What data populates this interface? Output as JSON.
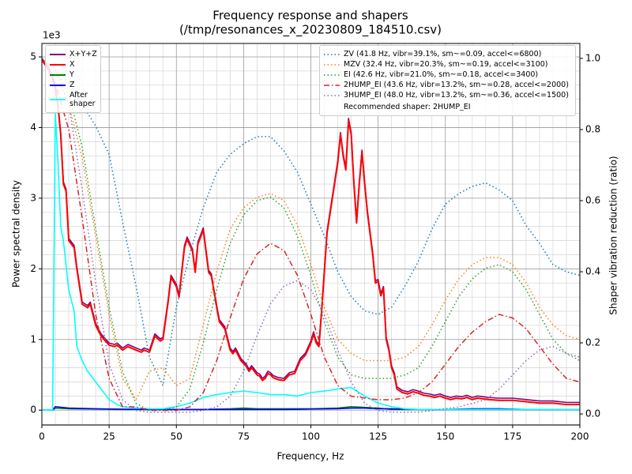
{
  "chart_data": {
    "type": "line",
    "title": "Frequency response and shapers",
    "subtitle": "(/tmp/resonances_x_20230809_184510.csv)",
    "xlabel": "Frequency, Hz",
    "ylabel": "Power spectral density",
    "y2label": "Shaper vibration reduction (ratio)",
    "y_offset_label": "1e3",
    "recommended": "Recommended shaper: 2HUMP_EI",
    "grid": true,
    "legend": "upper left",
    "legend2": "upper right",
    "xlim": [
      0,
      200
    ],
    "ylim": [
      -0.21,
      5.19
    ],
    "y2lim": [
      -0.031,
      1.042
    ],
    "xticks": [
      0,
      25,
      50,
      75,
      100,
      125,
      150,
      175,
      200
    ],
    "yticks": [
      0,
      1,
      2,
      3,
      4,
      5
    ],
    "y2ticks": [
      {
        "value": 0,
        "label": "0.0"
      },
      0.2,
      0.4,
      0.6,
      0.8,
      {
        "value": 1,
        "label": "1.0"
      }
    ],
    "xminorticks": [
      5,
      10,
      15,
      20,
      30,
      35,
      40,
      45,
      55,
      60,
      65,
      70,
      80,
      85,
      90,
      95,
      105,
      110,
      115,
      120,
      130,
      135,
      140,
      145,
      155,
      160,
      165,
      170,
      180,
      185,
      190,
      195
    ],
    "yminorticks": [
      -0.2,
      0.2,
      0.4,
      0.6,
      0.8,
      1.2,
      1.4,
      1.6,
      1.8,
      2.2,
      2.4,
      2.6,
      2.8,
      3.2,
      3.4,
      3.6,
      3.8,
      4.2,
      4.4,
      4.6,
      4.8
    ],
    "x": [
      0,
      2,
      4,
      5,
      6,
      7,
      8,
      9,
      10,
      12,
      13,
      15,
      17,
      18,
      20,
      22,
      25,
      27,
      28,
      30,
      32,
      35,
      37,
      38,
      40,
      42,
      44,
      45,
      47,
      48,
      50,
      51,
      53,
      54,
      56,
      57,
      58,
      60,
      62,
      63,
      65,
      66,
      68,
      70,
      71,
      72,
      74,
      76,
      77,
      78,
      80,
      81,
      82,
      83,
      84,
      85,
      86,
      88,
      90,
      92,
      94,
      96,
      98,
      100,
      101,
      102,
      103,
      104,
      106,
      108,
      110,
      111,
      112,
      113,
      114,
      115,
      116,
      117,
      118,
      119,
      120,
      121,
      123,
      124,
      125,
      126,
      127,
      128,
      129,
      130,
      131,
      132,
      134,
      136,
      138,
      140,
      142,
      144,
      146,
      148,
      150,
      152,
      154,
      156,
      158,
      160,
      162,
      164,
      166,
      170,
      175,
      180,
      185,
      190,
      195,
      200
    ],
    "series": [
      {
        "name": "X+Y+Z",
        "color": "#800080",
        "linestyle": "solid",
        "values": [
          4.98,
          4.88,
          4.73,
          4.58,
          4.33,
          3.93,
          3.23,
          3.13,
          2.43,
          2.33,
          2.03,
          1.53,
          1.48,
          1.53,
          1.23,
          1.08,
          0.95,
          0.93,
          0.95,
          0.88,
          0.93,
          0.88,
          0.85,
          0.88,
          0.85,
          1.08,
          1.01,
          1.03,
          1.58,
          1.91,
          1.78,
          1.63,
          2.33,
          2.45,
          2.28,
          1.98,
          2.38,
          2.58,
          1.98,
          1.93,
          1.48,
          1.28,
          1.18,
          0.88,
          0.83,
          0.88,
          0.73,
          0.65,
          0.58,
          0.63,
          0.53,
          0.51,
          0.45,
          0.48,
          0.55,
          0.53,
          0.49,
          0.46,
          0.45,
          0.53,
          0.55,
          0.73,
          0.81,
          0.98,
          1.11,
          0.98,
          0.93,
          1.43,
          2.53,
          3.03,
          3.53,
          3.93,
          3.63,
          3.43,
          4.13,
          3.93,
          3.23,
          2.68,
          3.23,
          3.68,
          3.23,
          2.83,
          2.23,
          1.83,
          1.85,
          1.65,
          1.75,
          1.03,
          0.88,
          0.63,
          0.53,
          0.33,
          0.28,
          0.26,
          0.29,
          0.27,
          0.24,
          0.23,
          0.21,
          0.23,
          0.2,
          0.18,
          0.2,
          0.19,
          0.21,
          0.18,
          0.2,
          0.19,
          0.18,
          0.17,
          0.17,
          0.15,
          0.13,
          0.13,
          0.11,
          0.11
        ]
      },
      {
        "name": "X",
        "color": "#ff0000",
        "linestyle": "solid",
        "values": [
          4.95,
          4.85,
          4.7,
          4.55,
          4.3,
          3.9,
          3.2,
          3.1,
          2.4,
          2.3,
          2.0,
          1.5,
          1.45,
          1.5,
          1.2,
          1.05,
          0.92,
          0.9,
          0.92,
          0.85,
          0.9,
          0.85,
          0.82,
          0.85,
          0.82,
          1.05,
          0.98,
          1.0,
          1.55,
          1.88,
          1.75,
          1.6,
          2.3,
          2.42,
          2.25,
          1.95,
          2.35,
          2.55,
          1.95,
          1.9,
          1.45,
          1.25,
          1.15,
          0.85,
          0.8,
          0.85,
          0.7,
          0.62,
          0.55,
          0.6,
          0.5,
          0.48,
          0.42,
          0.45,
          0.52,
          0.5,
          0.46,
          0.43,
          0.42,
          0.5,
          0.52,
          0.7,
          0.78,
          0.95,
          1.08,
          0.95,
          0.9,
          1.4,
          2.5,
          3.0,
          3.5,
          3.9,
          3.6,
          3.4,
          4.1,
          3.9,
          3.2,
          2.65,
          3.2,
          3.65,
          3.2,
          2.8,
          2.2,
          1.8,
          1.82,
          1.62,
          1.72,
          1.0,
          0.85,
          0.6,
          0.5,
          0.3,
          0.25,
          0.23,
          0.26,
          0.24,
          0.21,
          0.2,
          0.18,
          0.2,
          0.17,
          0.15,
          0.17,
          0.16,
          0.18,
          0.15,
          0.17,
          0.16,
          0.15,
          0.14,
          0.14,
          0.12,
          0.1,
          0.1,
          0.08,
          0.08
        ]
      },
      {
        "name": "Y",
        "color": "#008000",
        "linestyle": "solid",
        "x": [
          0,
          4,
          5,
          10,
          20,
          30,
          40,
          50,
          60,
          70,
          75,
          80,
          90,
          100,
          110,
          115,
          120,
          125,
          130,
          140,
          150,
          160,
          170,
          180,
          190,
          200
        ],
        "values": [
          0,
          0,
          0.03,
          0.02,
          0.015,
          0.01,
          0.01,
          0.01,
          0.01,
          0.02,
          0.03,
          0.02,
          0.02,
          0.02,
          0.03,
          0.05,
          0.04,
          0.03,
          0.01,
          0.01,
          0.01,
          0.01,
          0.01,
          0.01,
          0.01,
          0.01
        ]
      },
      {
        "name": "Z",
        "color": "#0000ff",
        "linestyle": "solid",
        "x": [
          0,
          4,
          5,
          10,
          20,
          30,
          40,
          50,
          60,
          70,
          75,
          80,
          90,
          100,
          110,
          115,
          120,
          125,
          130,
          140,
          150,
          160,
          170,
          180,
          190,
          200
        ],
        "values": [
          0,
          0,
          0.05,
          0.03,
          0.02,
          0.015,
          0.01,
          0.01,
          0.01,
          0.01,
          0.01,
          0.01,
          0.01,
          0.015,
          0.02,
          0.03,
          0.03,
          0.02,
          0.02,
          0.01,
          0.01,
          0.02,
          0.02,
          0.01,
          0.01,
          0.01
        ]
      },
      {
        "name": "After shaper",
        "color": "#00ffff",
        "linestyle": "solid",
        "x": [
          0,
          4,
          5,
          6,
          7,
          8,
          10,
          12,
          13,
          15,
          17,
          20,
          22,
          25,
          28,
          30,
          35,
          40,
          45,
          50,
          55,
          60,
          65,
          70,
          75,
          80,
          85,
          90,
          95,
          100,
          105,
          110,
          115,
          120,
          125,
          130,
          135,
          140,
          150,
          160,
          170,
          180,
          190,
          200
        ],
        "values": [
          0,
          0,
          4.2,
          3.5,
          2.6,
          2.4,
          1.7,
          1.4,
          0.9,
          0.7,
          0.55,
          0.4,
          0.3,
          0.15,
          0.08,
          0.05,
          0.03,
          0.02,
          0.02,
          0.05,
          0.1,
          0.18,
          0.22,
          0.25,
          0.27,
          0.25,
          0.22,
          0.22,
          0.2,
          0.25,
          0.27,
          0.3,
          0.32,
          0.2,
          0.1,
          0.05,
          0.02,
          0.01,
          0.01,
          0.01,
          0.01,
          0.01,
          0.01,
          0.01
        ]
      },
      {
        "name": "ZV (41.8 Hz, vibr=39.1%, sm~=0.09, accel<=6800)",
        "color": "#1f77b4",
        "linestyle": "dotted",
        "axis": "y2",
        "x": [
          0,
          5,
          10,
          15,
          20,
          25,
          30,
          35,
          40,
          45,
          50,
          55,
          60,
          65,
          70,
          75,
          80,
          85,
          90,
          95,
          100,
          105,
          110,
          115,
          120,
          125,
          130,
          135,
          140,
          145,
          150,
          155,
          160,
          165,
          170,
          175,
          180,
          185,
          190,
          195,
          200
        ],
        "values": [
          1.0,
          0.97,
          0.93,
          0.87,
          0.81,
          0.73,
          0.54,
          0.36,
          0.16,
          0.08,
          0.3,
          0.45,
          0.58,
          0.68,
          0.73,
          0.76,
          0.78,
          0.78,
          0.74,
          0.68,
          0.59,
          0.5,
          0.4,
          0.33,
          0.29,
          0.28,
          0.3,
          0.36,
          0.43,
          0.52,
          0.59,
          0.62,
          0.64,
          0.65,
          0.63,
          0.6,
          0.53,
          0.48,
          0.42,
          0.4,
          0.39
        ]
      },
      {
        "name": "MZV (32.4 Hz, vibr=20.3%, sm~=0.19, accel<=3100)",
        "color": "#ff7f0e",
        "linestyle": "dotted",
        "axis": "y2",
        "x": [
          0,
          5,
          10,
          15,
          20,
          25,
          30,
          35,
          40,
          45,
          50,
          55,
          60,
          65,
          70,
          75,
          80,
          85,
          90,
          95,
          100,
          105,
          110,
          115,
          120,
          125,
          130,
          135,
          140,
          145,
          150,
          155,
          160,
          165,
          170,
          175,
          180,
          185,
          190,
          195,
          200
        ],
        "values": [
          1.0,
          0.96,
          0.87,
          0.72,
          0.5,
          0.28,
          0.1,
          0.04,
          0.12,
          0.13,
          0.08,
          0.1,
          0.25,
          0.4,
          0.52,
          0.58,
          0.61,
          0.62,
          0.6,
          0.53,
          0.42,
          0.3,
          0.21,
          0.17,
          0.15,
          0.15,
          0.15,
          0.16,
          0.19,
          0.25,
          0.32,
          0.38,
          0.42,
          0.44,
          0.44,
          0.42,
          0.37,
          0.3,
          0.25,
          0.22,
          0.21
        ]
      },
      {
        "name": "EI (42.6 Hz, vibr=21.0%, sm~=0.18, accel<=3400)",
        "color": "#2ca02c",
        "linestyle": "dotted",
        "axis": "y2",
        "x": [
          0,
          5,
          10,
          15,
          20,
          25,
          30,
          35,
          40,
          45,
          50,
          55,
          60,
          65,
          70,
          75,
          80,
          85,
          90,
          95,
          100,
          105,
          110,
          115,
          120,
          125,
          130,
          135,
          140,
          145,
          150,
          155,
          160,
          165,
          170,
          175,
          180,
          185,
          190,
          195,
          200
        ],
        "values": [
          1.0,
          0.97,
          0.9,
          0.75,
          0.52,
          0.3,
          0.12,
          0.03,
          0.01,
          0.01,
          0.02,
          0.07,
          0.2,
          0.35,
          0.48,
          0.56,
          0.6,
          0.61,
          0.58,
          0.5,
          0.39,
          0.26,
          0.16,
          0.11,
          0.1,
          0.1,
          0.1,
          0.11,
          0.13,
          0.19,
          0.26,
          0.33,
          0.38,
          0.41,
          0.42,
          0.4,
          0.35,
          0.28,
          0.21,
          0.17,
          0.16
        ]
      },
      {
        "name": "2HUMP_EI (43.6 Hz, vibr=13.2%, sm~=0.28, accel<=2000)",
        "color": "#d62728",
        "linestyle": "dashdot",
        "axis": "y2",
        "x": [
          0,
          5,
          10,
          15,
          20,
          25,
          30,
          35,
          40,
          45,
          50,
          55,
          60,
          65,
          70,
          75,
          80,
          85,
          90,
          95,
          100,
          105,
          110,
          115,
          120,
          125,
          130,
          135,
          140,
          145,
          150,
          155,
          160,
          165,
          170,
          175,
          180,
          185,
          190,
          195,
          200
        ],
        "values": [
          1.0,
          0.93,
          0.8,
          0.55,
          0.28,
          0.1,
          0.02,
          0.02,
          0.01,
          0.01,
          0.01,
          0.02,
          0.06,
          0.15,
          0.27,
          0.38,
          0.45,
          0.48,
          0.46,
          0.39,
          0.28,
          0.16,
          0.08,
          0.05,
          0.045,
          0.04,
          0.04,
          0.045,
          0.06,
          0.09,
          0.14,
          0.19,
          0.23,
          0.26,
          0.28,
          0.27,
          0.24,
          0.19,
          0.14,
          0.1,
          0.09
        ]
      },
      {
        "name": "3HUMP_EI (48.0 Hz, vibr=13.2%, sm~=0.36, accel<=1500)",
        "color": "#9467bd",
        "linestyle": "dotted",
        "axis": "y2",
        "x": [
          0,
          5,
          10,
          15,
          20,
          25,
          30,
          35,
          40,
          45,
          50,
          55,
          60,
          65,
          70,
          75,
          80,
          85,
          90,
          95,
          100,
          105,
          110,
          115,
          120,
          125,
          130,
          135,
          140,
          145,
          150,
          155,
          160,
          165,
          170,
          175,
          180,
          185,
          190,
          195,
          200
        ],
        "values": [
          1.0,
          0.97,
          0.87,
          0.63,
          0.37,
          0.14,
          0.04,
          0.01,
          0.005,
          0.005,
          0.005,
          0.005,
          0.01,
          0.02,
          0.05,
          0.12,
          0.22,
          0.31,
          0.36,
          0.375,
          0.35,
          0.28,
          0.18,
          0.09,
          0.03,
          0.01,
          0.005,
          0.005,
          0.005,
          0.01,
          0.015,
          0.02,
          0.03,
          0.04,
          0.07,
          0.11,
          0.15,
          0.18,
          0.19,
          0.17,
          0.15
        ]
      }
    ]
  }
}
